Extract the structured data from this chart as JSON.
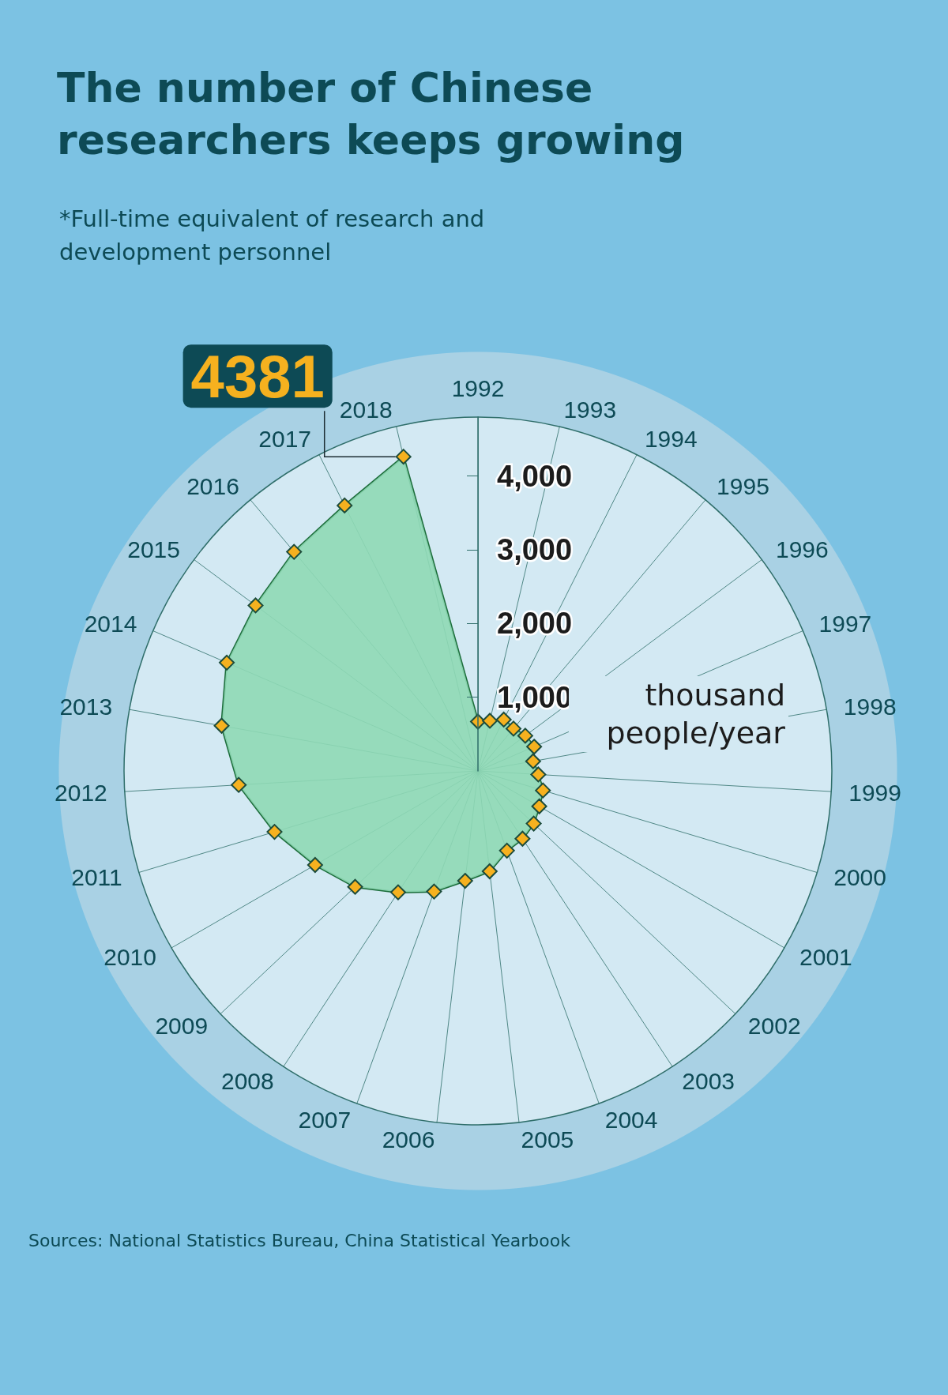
{
  "chart_data": {
    "type": "radar",
    "title": "The number of Chinese researchers keeps growing",
    "subtitle": "*Full-time equivalent of research and development personnel",
    "ylabel": "thousand people/year",
    "annotations": [
      "Sources: National Statistics Bureau, China Statistical Yearbook"
    ],
    "categories": [
      "1992",
      "1993",
      "1994",
      "1995",
      "1996",
      "1997",
      "1998",
      "1999",
      "2000",
      "2001",
      "2002",
      "2003",
      "2004",
      "2005",
      "2006",
      "2007",
      "2008",
      "2009",
      "2010",
      "2011",
      "2012",
      "2013",
      "2014",
      "2015",
      "2016",
      "2017",
      "2018"
    ],
    "series": [
      {
        "color": "#1d6e3c",
        "values": [
          670,
          700,
          780,
          750,
          800,
          830,
          760,
          820,
          920,
          960,
          1040,
          1100,
          1150,
          1370,
          1500,
          1740,
          1970,
          2290,
          2550,
          2880,
          3250,
          3530,
          3710,
          3760,
          3880,
          4030,
          4381
        ],
        "value_labels": [
          null,
          null,
          null,
          null,
          null,
          null,
          null,
          null,
          null,
          null,
          null,
          null,
          null,
          null,
          null,
          null,
          null,
          null,
          null,
          null,
          null,
          null,
          null,
          null,
          null,
          null,
          "4381"
        ]
      }
    ],
    "ylim": [
      0,
      4800
    ],
    "yticks": [
      {
        "value": 1000,
        "label": "1,000"
      },
      {
        "value": 2000,
        "label": "2,000"
      },
      {
        "value": 3000,
        "label": "3,000"
      },
      {
        "value": 4000,
        "label": "4,000"
      }
    ],
    "grid": true,
    "marker": "diamond"
  }
}
